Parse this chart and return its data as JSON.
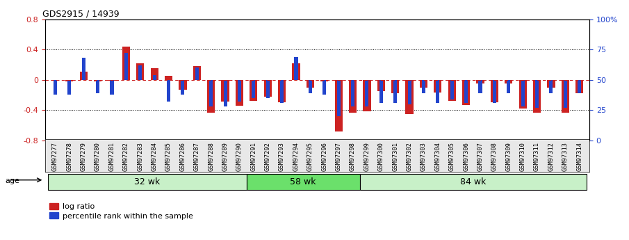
{
  "title": "GDS2915 / 14939",
  "samples": [
    "GSM97277",
    "GSM97278",
    "GSM97279",
    "GSM97280",
    "GSM97281",
    "GSM97282",
    "GSM97283",
    "GSM97284",
    "GSM97285",
    "GSM97286",
    "GSM97287",
    "GSM97288",
    "GSM97289",
    "GSM97290",
    "GSM97291",
    "GSM97292",
    "GSM97293",
    "GSM97294",
    "GSM97295",
    "GSM97296",
    "GSM97297",
    "GSM97298",
    "GSM97299",
    "GSM97300",
    "GSM97301",
    "GSM97302",
    "GSM97303",
    "GSM97304",
    "GSM97305",
    "GSM97306",
    "GSM97307",
    "GSM97308",
    "GSM97309",
    "GSM97310",
    "GSM97311",
    "GSM97312",
    "GSM97313",
    "GSM97314"
  ],
  "log_ratio": [
    -0.01,
    -0.02,
    0.11,
    -0.02,
    -0.01,
    0.44,
    0.22,
    0.15,
    0.05,
    -0.13,
    0.18,
    -0.43,
    -0.29,
    -0.34,
    -0.28,
    -0.22,
    -0.3,
    0.22,
    -0.1,
    -0.02,
    -0.68,
    -0.43,
    -0.42,
    -0.15,
    -0.18,
    -0.45,
    -0.1,
    -0.17,
    -0.28,
    -0.33,
    -0.05,
    -0.3,
    -0.05,
    -0.38,
    -0.43,
    -0.1,
    -0.43,
    -0.18
  ],
  "percentile_pct": [
    38,
    38,
    68,
    39,
    38,
    72,
    62,
    54,
    32,
    38,
    60,
    28,
    28,
    32,
    35,
    35,
    31,
    69,
    39,
    38,
    20,
    28,
    28,
    31,
    31,
    30,
    39,
    31,
    34,
    31,
    39,
    31,
    39,
    28,
    27,
    39,
    27,
    39
  ],
  "groups": [
    {
      "label": "32 wk",
      "start": 0,
      "end": 14
    },
    {
      "label": "58 wk",
      "start": 14,
      "end": 22
    },
    {
      "label": "84 wk",
      "start": 22,
      "end": 38
    }
  ],
  "group_colors": [
    "#c8f0c8",
    "#6be06b",
    "#c8f0c8"
  ],
  "ylim": [
    -0.8,
    0.8
  ],
  "yticks_left": [
    -0.8,
    -0.4,
    0.0,
    0.4,
    0.8
  ],
  "yticks_right_pct": [
    0,
    25,
    50,
    75,
    100
  ],
  "ytick_labels_right": [
    "0",
    "25",
    "50",
    "75",
    "100%"
  ],
  "red_color": "#CC2222",
  "blue_color": "#2244CC",
  "dotted_levels": [
    -0.4,
    0.0,
    0.4
  ]
}
